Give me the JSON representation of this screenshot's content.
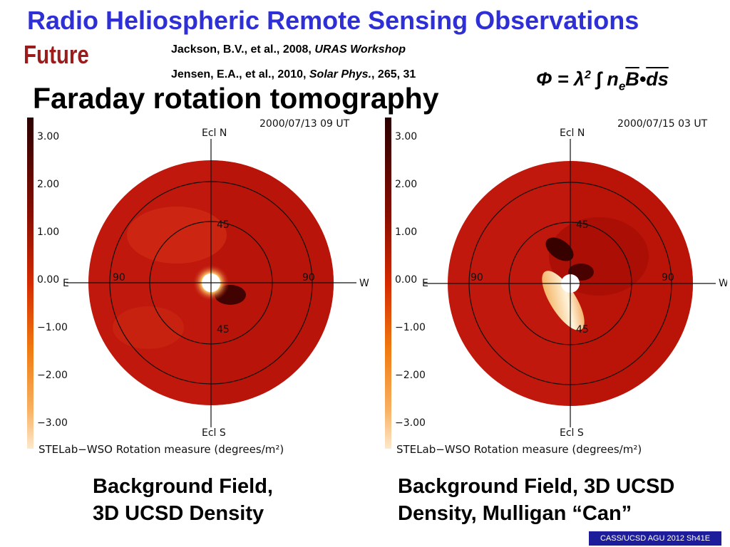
{
  "header": {
    "title": "Radio Heliospheric Remote Sensing Observations",
    "section": "Future",
    "subtitle": "Faraday rotation tomography"
  },
  "references": [
    {
      "text": "Jackson, B.V., et al., 2008, ",
      "venue": "URAS Workshop",
      "tail": ""
    },
    {
      "text": "Jensen, E.A., et al., 2010, ",
      "venue": "Solar Phys.",
      "tail": ", 265, 31"
    }
  ],
  "formula": {
    "lhs": "Φ = λ",
    "power": "2",
    "integral": " ∫ n",
    "sub": "e",
    "b": "B",
    "dot": "•",
    "ds": "ds"
  },
  "colors": {
    "title": "#2f2fd6",
    "section": "#9b1c1c",
    "disk": "#c0180c",
    "footer_bg": "#1d1d9c"
  },
  "plots": [
    {
      "timestamp": "2000/07/13 09 UT",
      "colorbar_ticks": [
        "3.00",
        "2.00",
        "1.00",
        "0.00",
        "−1.00",
        "−2.00",
        "−3.00"
      ],
      "axis_labels": {
        "north": "Ecl N",
        "south": "Ecl S",
        "east": "E",
        "west": "W"
      },
      "ring_labels": {
        "inner_top": "45",
        "inner_bottom": "45",
        "outer_left": "90",
        "outer_right": "90"
      },
      "colorbar_title": "STELab−WSO Rotation measure (degrees/m²)"
    },
    {
      "timestamp": "2000/07/15 03 UT",
      "colorbar_ticks": [
        "3.00",
        "2.00",
        "1.00",
        "0.00",
        "−1.00",
        "−2.00",
        "−3.00"
      ],
      "axis_labels": {
        "north": "Ecl N",
        "south": "Ecl S",
        "east": "E",
        "west": "W"
      },
      "ring_labels": {
        "inner_top": "45",
        "inner_bottom": "45",
        "outer_left": "90",
        "outer_right": "90"
      },
      "colorbar_title": "STELab−WSO Rotation measure (degrees/m²)"
    }
  ],
  "captions": {
    "left": [
      "Background Field,",
      "3D UCSD Density"
    ],
    "right": [
      "Background Field, 3D UCSD",
      "Density, Mulligan “Can”"
    ]
  },
  "footer": "CASS/UCSD AGU 2012 Sh41E"
}
